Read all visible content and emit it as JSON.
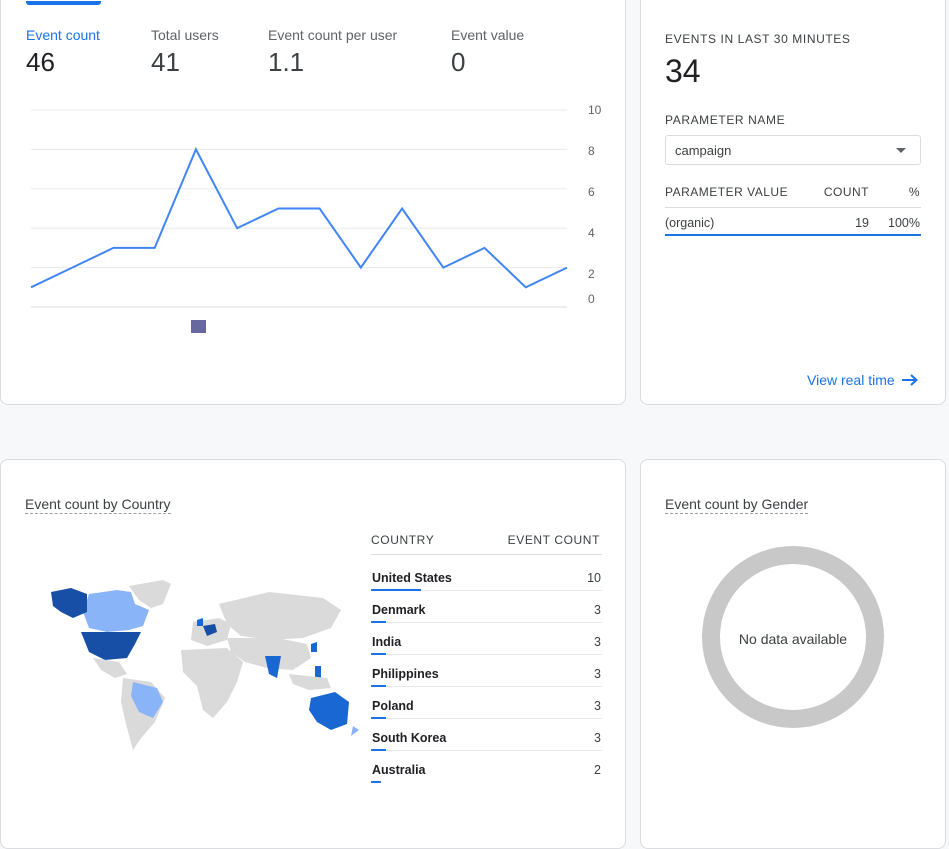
{
  "metrics": [
    {
      "label": "Event count",
      "value": "46",
      "active": true
    },
    {
      "label": "Total users",
      "value": "41",
      "active": false
    },
    {
      "label": "Event count per user",
      "value": "1.1",
      "active": false
    },
    {
      "label": "Event value",
      "value": "0",
      "active": false
    }
  ],
  "chart_data": {
    "type": "line",
    "x": [
      0,
      1,
      2,
      3,
      4,
      5,
      6,
      7,
      8,
      9,
      10,
      11,
      12,
      13
    ],
    "series": [
      {
        "values": [
          1,
          2,
          3,
          3,
          8,
          4,
          5,
          5,
          2,
          5,
          2,
          3,
          1,
          2
        ]
      }
    ],
    "ylim": [
      0,
      10
    ],
    "yticks": [
      "10",
      "8",
      "6",
      "4",
      "2",
      "0"
    ],
    "grid": true,
    "accent": "#4285f4"
  },
  "realtime": {
    "title": "EVENTS IN LAST 30 MINUTES",
    "value": "34",
    "param_label": "PARAMETER NAME",
    "param_value": "campaign",
    "col_value": "PARAMETER VALUE",
    "col_count": "COUNT",
    "col_pct": "%",
    "rows": [
      {
        "value": "(organic)",
        "count": "19",
        "pct": "100%"
      }
    ],
    "link": "View real time"
  },
  "country": {
    "title": "Event count by Country",
    "col_country": "COUNTRY",
    "col_count": "EVENT COUNT",
    "rows": [
      {
        "name": "United States",
        "count": "10",
        "v": 10
      },
      {
        "name": "Denmark",
        "count": "3",
        "v": 3
      },
      {
        "name": "India",
        "count": "3",
        "v": 3
      },
      {
        "name": "Philippines",
        "count": "3",
        "v": 3
      },
      {
        "name": "Poland",
        "count": "3",
        "v": 3
      },
      {
        "name": "South Korea",
        "count": "3",
        "v": 3
      },
      {
        "name": "Australia",
        "count": "2",
        "v": 2
      }
    ],
    "colors": {
      "high": "#174ea6",
      "mid": "#1967d2",
      "low": "#8ab4f8",
      "none": "#dadada"
    }
  },
  "gender": {
    "title": "Event count by Gender",
    "empty": "No data available"
  }
}
